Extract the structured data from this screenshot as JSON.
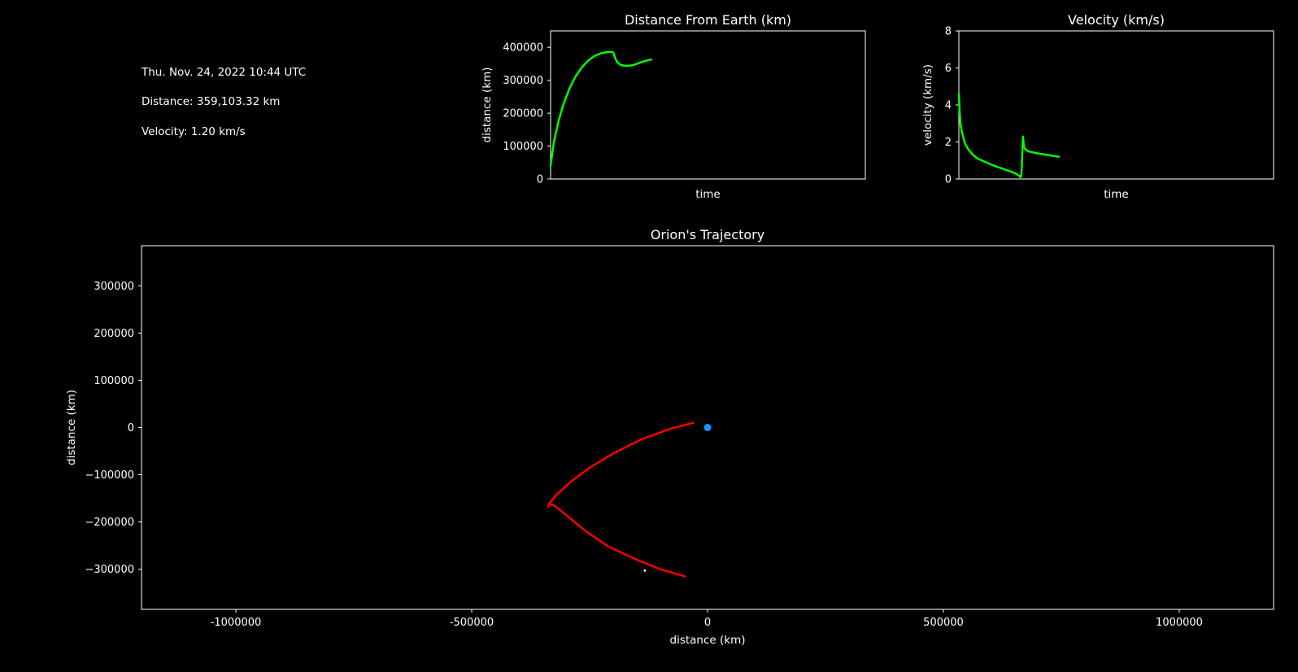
{
  "info": {
    "date": "Thu. Nov. 24, 2022 10:44 UTC",
    "distance": "Distance: 359,103.32 km",
    "velocity": "Velocity: 1.20 km/s"
  },
  "colors": {
    "background": "#000000",
    "series_green": "#00ff00",
    "trajectory_red": "#ff0000",
    "earth_blue": "#1e90ff",
    "axes": "#ffffff"
  },
  "chart_data": [
    {
      "type": "line",
      "title": "Distance From Earth (km)",
      "xlabel": "time",
      "ylabel": "distance (km)",
      "xlim": [
        0,
        1
      ],
      "ylim": [
        0,
        450000
      ],
      "yticks": [
        0,
        100000,
        200000,
        300000,
        400000
      ],
      "ytick_labels": [
        "0",
        "100000",
        "200000",
        "300000",
        "400000"
      ],
      "grid": false,
      "series": [
        {
          "color": "#00ff00",
          "x": [
            0.0,
            0.01,
            0.025,
            0.04,
            0.06,
            0.08,
            0.1,
            0.12,
            0.14,
            0.16,
            0.18,
            0.19,
            0.197,
            0.2,
            0.205,
            0.212,
            0.222,
            0.235,
            0.25,
            0.265,
            0.28,
            0.295,
            0.31,
            0.32
          ],
          "values": [
            40000,
            110000,
            175000,
            225000,
            275000,
            313000,
            340000,
            360000,
            374000,
            382000,
            386000,
            386000,
            386000,
            383000,
            368000,
            355000,
            347000,
            344000,
            344000,
            347000,
            352000,
            357000,
            361000,
            363000
          ]
        }
      ]
    },
    {
      "type": "line",
      "title": "Velocity (km/s)",
      "xlabel": "time",
      "ylabel": "velocity (km/s)",
      "xlim": [
        0,
        1
      ],
      "ylim": [
        0,
        8
      ],
      "yticks": [
        0,
        2,
        4,
        6,
        8
      ],
      "ytick_labels": [
        "0",
        "2",
        "4",
        "6",
        "8"
      ],
      "grid": false,
      "series": [
        {
          "color": "#00ff00",
          "x": [
            0.0,
            0.002,
            0.005,
            0.01,
            0.02,
            0.03,
            0.045,
            0.06,
            0.08,
            0.1,
            0.12,
            0.14,
            0.16,
            0.18,
            0.193,
            0.197,
            0.199,
            0.201,
            0.203,
            0.204,
            0.206,
            0.208,
            0.212,
            0.22,
            0.24,
            0.26,
            0.28,
            0.3,
            0.318
          ],
          "values": [
            4.6,
            3.8,
            3.0,
            2.5,
            1.9,
            1.6,
            1.3,
            1.1,
            0.95,
            0.8,
            0.67,
            0.55,
            0.43,
            0.3,
            0.15,
            0.1,
            0.3,
            1.2,
            2.1,
            2.3,
            1.9,
            1.7,
            1.6,
            1.5,
            1.42,
            1.36,
            1.3,
            1.25,
            1.2
          ]
        }
      ]
    },
    {
      "type": "line",
      "title": "Orion's Trajectory",
      "xlabel": "distance (km)",
      "ylabel": "distance (km)",
      "xlim": [
        -1200000,
        1200000
      ],
      "ylim": [
        -385000,
        385000
      ],
      "xticks": [
        -1000000,
        -500000,
        0,
        500000,
        1000000
      ],
      "xtick_labels": [
        "-1000000",
        "-500000",
        "0",
        "500000",
        "1000000"
      ],
      "yticks": [
        -300000,
        -200000,
        -100000,
        0,
        100000,
        200000,
        300000
      ],
      "ytick_labels": [
        "−300000",
        "−200000",
        "−100000",
        "0",
        "100000",
        "200000",
        "300000"
      ],
      "grid": false,
      "series": [
        {
          "color": "#ff0000",
          "x": [
            -30000,
            -80000,
            -140000,
            -200000,
            -250000,
            -290000,
            -320000,
            -335000,
            -338000,
            -336000,
            -325000,
            -300000,
            -260000,
            -210000,
            -150000,
            -100000,
            -48000
          ],
          "values": [
            10000,
            -3000,
            -25000,
            -55000,
            -85000,
            -115000,
            -142000,
            -160000,
            -168000,
            -162000,
            -165000,
            -185000,
            -218000,
            -252000,
            -280000,
            -300000,
            -315000
          ]
        }
      ],
      "markers": [
        {
          "label": "Earth",
          "x": 0,
          "y": 0,
          "color": "#1e90ff"
        },
        {
          "label": "Moon",
          "x": -133000,
          "y": -303000,
          "color": "#ffffff"
        }
      ]
    }
  ]
}
